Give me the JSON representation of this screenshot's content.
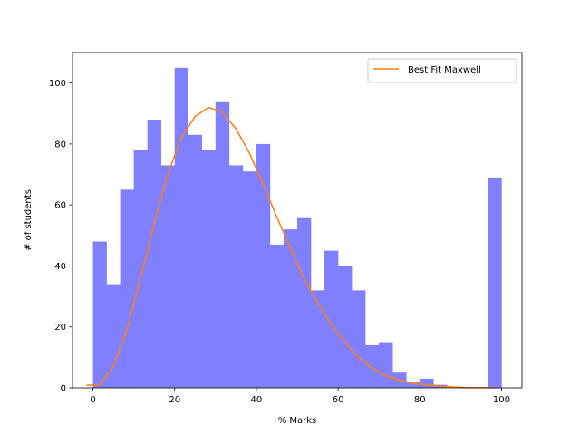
{
  "chart_data": {
    "type": "bar",
    "xlabel": "% Marks",
    "ylabel": "# of students",
    "xlim": [
      -5,
      105
    ],
    "ylim": [
      0,
      110
    ],
    "xticks": [
      0,
      20,
      40,
      60,
      80,
      100
    ],
    "yticks": [
      0,
      20,
      40,
      60,
      80,
      100
    ],
    "legend": {
      "position": "top-right",
      "entries": [
        "Best Fit Maxwell"
      ]
    },
    "colors": {
      "bars": "#8080ff",
      "fit_line": "#ff7f0e"
    },
    "histogram": {
      "bin_start": 0,
      "bin_width": 3.333,
      "values": [
        48,
        34,
        65,
        78,
        88,
        73,
        105,
        83,
        78,
        94,
        73,
        71,
        80,
        47,
        52,
        56,
        32,
        45,
        40,
        32,
        14,
        15,
        5,
        2,
        3,
        1,
        0,
        0,
        0,
        69
      ]
    },
    "series": [
      {
        "name": "Best Fit Maxwell",
        "type": "line",
        "x": [
          -1.6,
          1.6,
          5,
          8.3,
          11.6,
          15,
          18.3,
          21.6,
          25,
          28.3,
          31.6,
          35,
          38.3,
          41.6,
          45,
          48.3,
          51.6,
          55,
          58.3,
          61.6,
          65,
          68.3,
          71.6,
          75,
          78.3,
          81.6,
          85,
          88.3,
          91.6,
          95,
          98.3
        ],
        "y": [
          0.8,
          1.0,
          7,
          19,
          36,
          54,
          70,
          82,
          89,
          92,
          90.5,
          85,
          77,
          67,
          56,
          46,
          36,
          28,
          21,
          15,
          10,
          6.5,
          4,
          2.5,
          1.5,
          1,
          0.6,
          0.3,
          0.1,
          0.05,
          0
        ]
      }
    ]
  }
}
